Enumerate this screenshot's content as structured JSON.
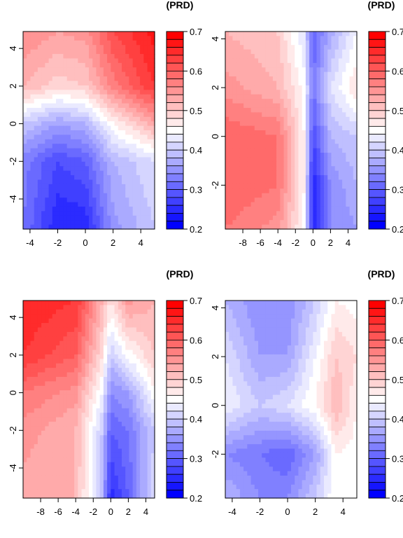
{
  "chart_data": [
    {
      "type": "heatmap",
      "title": "(PRD)",
      "xlim": [
        -4.5,
        5
      ],
      "ylim": [
        -5.6,
        4.9
      ],
      "xticks": [
        "-4",
        "-2",
        "0",
        "2",
        "4"
      ],
      "yticks": [
        "4",
        "2",
        "0",
        "-2",
        "-4"
      ],
      "colorbar": {
        "min": 0.2,
        "max": 0.7,
        "ticks": [
          "0.7",
          "0.6",
          "0.5",
          "0.4",
          "0.3",
          "0.2"
        ]
      },
      "grid_x": [
        -4.5,
        -2,
        0,
        2,
        5
      ],
      "grid_y": [
        4.9,
        2,
        0,
        -2,
        -5.6
      ],
      "z": [
        [
          0.56,
          0.54,
          0.55,
          0.62,
          0.67
        ],
        [
          0.52,
          0.49,
          0.5,
          0.57,
          0.64
        ],
        [
          0.4,
          0.36,
          0.38,
          0.46,
          0.53
        ],
        [
          0.33,
          0.28,
          0.3,
          0.38,
          0.42
        ],
        [
          0.32,
          0.24,
          0.24,
          0.35,
          0.4
        ]
      ]
    },
    {
      "type": "heatmap",
      "title": "(PRD)",
      "xlim": [
        -10,
        5
      ],
      "ylim": [
        -3.8,
        4.3
      ],
      "xticks": [
        "-8",
        "-6",
        "-4",
        "-2",
        "0",
        "2",
        "4"
      ],
      "yticks": [
        "4",
        "2",
        "0",
        "-2"
      ],
      "colorbar": {
        "min": 0.2,
        "max": 0.7,
        "ticks": [
          "0.7",
          "0.6",
          "0.5",
          "0.4",
          "0.3",
          "0.2"
        ]
      },
      "grid_x": [
        -10,
        -4,
        -1,
        0,
        2,
        5
      ],
      "grid_y": [
        4.3,
        2,
        0,
        -2,
        -3.8
      ],
      "z": [
        [
          0.52,
          0.5,
          0.42,
          0.3,
          0.37,
          0.44
        ],
        [
          0.55,
          0.52,
          0.45,
          0.32,
          0.42,
          0.48
        ],
        [
          0.6,
          0.58,
          0.46,
          0.28,
          0.38,
          0.4
        ],
        [
          0.6,
          0.58,
          0.46,
          0.24,
          0.34,
          0.38
        ],
        [
          0.58,
          0.55,
          0.45,
          0.25,
          0.34,
          0.36
        ]
      ]
    },
    {
      "type": "heatmap",
      "title": "(PRD)",
      "xlim": [
        -10,
        5
      ],
      "ylim": [
        -5.6,
        4.9
      ],
      "xticks": [
        "-8",
        "-6",
        "-4",
        "-2",
        "0",
        "2",
        "4"
      ],
      "yticks": [
        "4",
        "2",
        "0",
        "-2",
        "-4"
      ],
      "colorbar": {
        "min": 0.2,
        "max": 0.7,
        "ticks": [
          "0.7",
          "0.6",
          "0.5",
          "0.4",
          "0.3",
          "0.2"
        ]
      },
      "grid_x": [
        -10,
        -4,
        -1,
        0,
        2,
        5
      ],
      "grid_y": [
        4.9,
        2,
        0,
        -2,
        -5.6
      ],
      "z": [
        [
          0.66,
          0.64,
          0.52,
          0.48,
          0.55,
          0.52
        ],
        [
          0.64,
          0.6,
          0.48,
          0.4,
          0.45,
          0.5
        ],
        [
          0.58,
          0.55,
          0.44,
          0.34,
          0.36,
          0.46
        ],
        [
          0.55,
          0.52,
          0.4,
          0.3,
          0.32,
          0.4
        ],
        [
          0.53,
          0.52,
          0.38,
          0.25,
          0.3,
          0.42
        ]
      ]
    },
    {
      "type": "heatmap",
      "title": "(PRD)",
      "xlim": [
        -4.5,
        5
      ],
      "ylim": [
        -3.8,
        4.3
      ],
      "xticks": [
        "-4",
        "-2",
        "0",
        "2",
        "4"
      ],
      "yticks": [
        "4",
        "2",
        "0",
        "-2"
      ],
      "colorbar": {
        "min": 0.2,
        "max": 0.7,
        "ticks": [
          "0.7",
          "0.6",
          "0.5",
          "0.4",
          "0.3",
          "0.2"
        ]
      },
      "grid_x": [
        -4.5,
        -2,
        0,
        2,
        3.5,
        5
      ],
      "grid_y": [
        4.3,
        2,
        0,
        -2,
        -3.8
      ],
      "z": [
        [
          0.38,
          0.34,
          0.34,
          0.4,
          0.46,
          0.45
        ],
        [
          0.42,
          0.36,
          0.36,
          0.44,
          0.5,
          0.48
        ],
        [
          0.44,
          0.4,
          0.42,
          0.46,
          0.52,
          0.46
        ],
        [
          0.34,
          0.32,
          0.3,
          0.36,
          0.46,
          0.45
        ],
        [
          0.38,
          0.34,
          0.34,
          0.4,
          0.46,
          0.45
        ]
      ]
    }
  ]
}
